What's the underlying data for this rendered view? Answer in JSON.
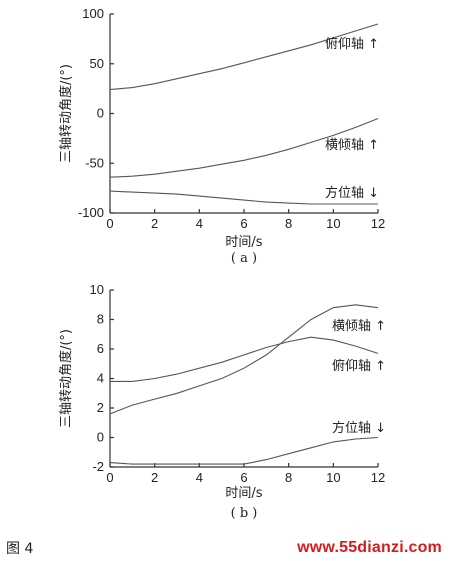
{
  "figure_label": "图 4",
  "watermark": "www.55dianzi.com",
  "chart_data": [
    {
      "type": "line",
      "caption": "( a )",
      "xlabel": "时间/s",
      "ylabel": "三轴转动角度/(°)",
      "xlim": [
        0,
        12
      ],
      "ylim": [
        -100,
        100
      ],
      "xticks": [
        0,
        2,
        4,
        6,
        8,
        10,
        12
      ],
      "yticks": [
        -100,
        -50,
        0,
        50,
        100
      ],
      "series": [
        {
          "name": "俯仰轴 ↑",
          "x": [
            0,
            1,
            2,
            3,
            4,
            5,
            6,
            7,
            8,
            9,
            10,
            11,
            12
          ],
          "y": [
            24,
            26,
            30,
            35,
            40,
            45,
            51,
            57,
            63,
            69,
            76,
            83,
            90
          ]
        },
        {
          "name": "横倾轴 ↑",
          "x": [
            0,
            1,
            2,
            3,
            4,
            5,
            6,
            7,
            8,
            9,
            10,
            11,
            12
          ],
          "y": [
            -64,
            -63,
            -61,
            -58,
            -55,
            -51,
            -47,
            -42,
            -36,
            -29,
            -22,
            -14,
            -5
          ]
        },
        {
          "name": "方位轴 ↓",
          "x": [
            0,
            1,
            2,
            3,
            4,
            5,
            6,
            7,
            8,
            9,
            10,
            11,
            12
          ],
          "y": [
            -78,
            -79,
            -80,
            -81,
            -83,
            -85,
            -87,
            -89,
            -90,
            -91,
            -91,
            -91,
            -91
          ]
        }
      ]
    },
    {
      "type": "line",
      "caption": "( b )",
      "xlabel": "时间/s",
      "ylabel": "三轴转动角度/(°)",
      "xlim": [
        0,
        12
      ],
      "ylim": [
        -2,
        10
      ],
      "xticks": [
        0,
        2,
        4,
        6,
        8,
        10,
        12
      ],
      "yticks": [
        -2,
        0,
        2,
        4,
        6,
        8,
        10
      ],
      "series": [
        {
          "name": "横倾轴 ↑",
          "x": [
            0,
            1,
            2,
            3,
            4,
            5,
            6,
            7,
            8,
            9,
            10,
            11,
            12
          ],
          "y": [
            3.8,
            3.8,
            4.0,
            4.3,
            4.7,
            5.1,
            5.6,
            6.1,
            6.5,
            6.8,
            6.6,
            6.2,
            5.7
          ]
        },
        {
          "name": "俯仰轴 ↑",
          "x": [
            0,
            1,
            2,
            3,
            4,
            5,
            6,
            7,
            8,
            9,
            10,
            11,
            12
          ],
          "y": [
            1.6,
            2.2,
            2.6,
            3.0,
            3.5,
            4.0,
            4.7,
            5.6,
            6.8,
            8.0,
            8.8,
            9.0,
            8.8
          ]
        },
        {
          "name": "方位轴 ↓",
          "x": [
            0,
            1,
            2,
            3,
            4,
            5,
            6,
            7,
            8,
            9,
            10,
            11,
            12
          ],
          "y": [
            -1.7,
            -1.8,
            -1.8,
            -1.8,
            -1.8,
            -1.8,
            -1.8,
            -1.5,
            -1.1,
            -0.7,
            -0.3,
            -0.1,
            0.0
          ]
        }
      ]
    }
  ]
}
